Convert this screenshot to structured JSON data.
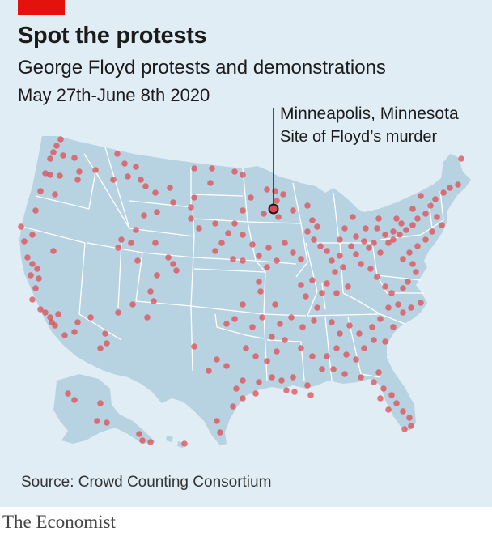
{
  "header": {
    "title": "Spot the protests",
    "subtitle": "George Floyd protests and demonstrations",
    "date_range": "May 27th-June 8th 2020"
  },
  "annotation": {
    "place": "Minneapolis, Minnesota",
    "note": "Site of Floyd’s murder"
  },
  "footer": {
    "source": "Source: Crowd Counting Consortium",
    "brand": "The Economist"
  },
  "colors": {
    "background": "#e1edf4",
    "land": "#b7d3e2",
    "state_border": "#ffffff",
    "protest_dot": "#e0464e",
    "brand_red": "#e3120b"
  },
  "legend": {
    "marker": "red dot = protest or demonstration location"
  }
}
